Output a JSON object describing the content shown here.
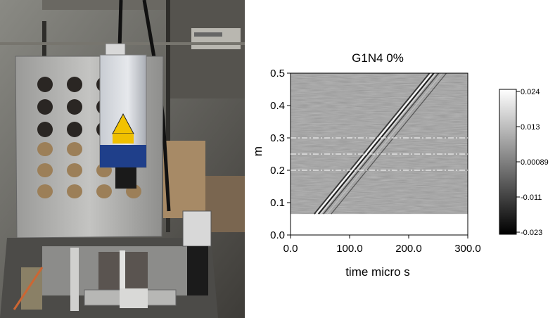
{
  "chart_data": {
    "type": "heatmap",
    "title": "G1N4  0%",
    "xlabel": "time micro s",
    "ylabel": "m",
    "xlim": [
      0,
      300
    ],
    "ylim": [
      0,
      0.5
    ],
    "x_ticks": [
      "0.0",
      "100.0",
      "200.0",
      "300.0"
    ],
    "y_ticks": [
      "0.0",
      "0.1",
      "0.2",
      "0.3",
      "0.4",
      "0.5"
    ],
    "data_y_range": [
      0.065,
      0.5
    ],
    "wavefront": {
      "start": [
        45,
        0.065
      ],
      "end": [
        240,
        0.5
      ]
    },
    "reference_lines_m": [
      0.2,
      0.25,
      0.3
    ],
    "colorbar": {
      "ticks": [
        "0.024",
        "0.013",
        "0.00089",
        "-0.011",
        "-0.023"
      ],
      "min": -0.023,
      "max": 0.024
    }
  }
}
